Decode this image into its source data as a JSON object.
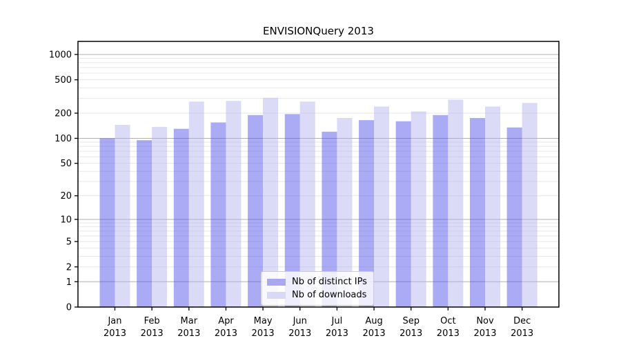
{
  "title": "ENVISIONQuery 2013",
  "chart_data": {
    "type": "bar",
    "title": "ENVISIONQuery 2013",
    "categories": [
      "Jan",
      "Feb",
      "Mar",
      "Apr",
      "May",
      "Jun",
      "Jul",
      "Aug",
      "Sep",
      "Oct",
      "Nov",
      "Dec"
    ],
    "category_year": "2013",
    "series": [
      {
        "name": "Nb of distinct IPs",
        "values": [
          100,
          95,
          130,
          155,
          190,
          195,
          120,
          165,
          160,
          190,
          175,
          135
        ],
        "bar_color": "rgba(80,80,235,0.48)",
        "legend_color": "#a9a9f1"
      },
      {
        "name": "Nb of downloads",
        "values": [
          145,
          137,
          275,
          280,
          305,
          275,
          175,
          240,
          210,
          290,
          240,
          265
        ],
        "bar_color": "rgba(175,175,240,0.45)",
        "legend_color": "#d9d9f7"
      }
    ],
    "y_axis": {
      "scale": "log1p",
      "tick_labels": [
        0,
        1,
        2,
        5,
        10,
        20,
        50,
        100,
        200,
        500,
        1000
      ],
      "major_gridlines": [
        1,
        10,
        100,
        1000
      ],
      "ylim_top": 1400
    },
    "x_axis": {
      "tick_per_category": true
    },
    "legend_position": "lower center",
    "grid": true,
    "colors": {
      "major_grid": "#b0b0b0",
      "minor_grid": "#e7e7e7",
      "spine": "#000000",
      "text": "#000000"
    }
  }
}
